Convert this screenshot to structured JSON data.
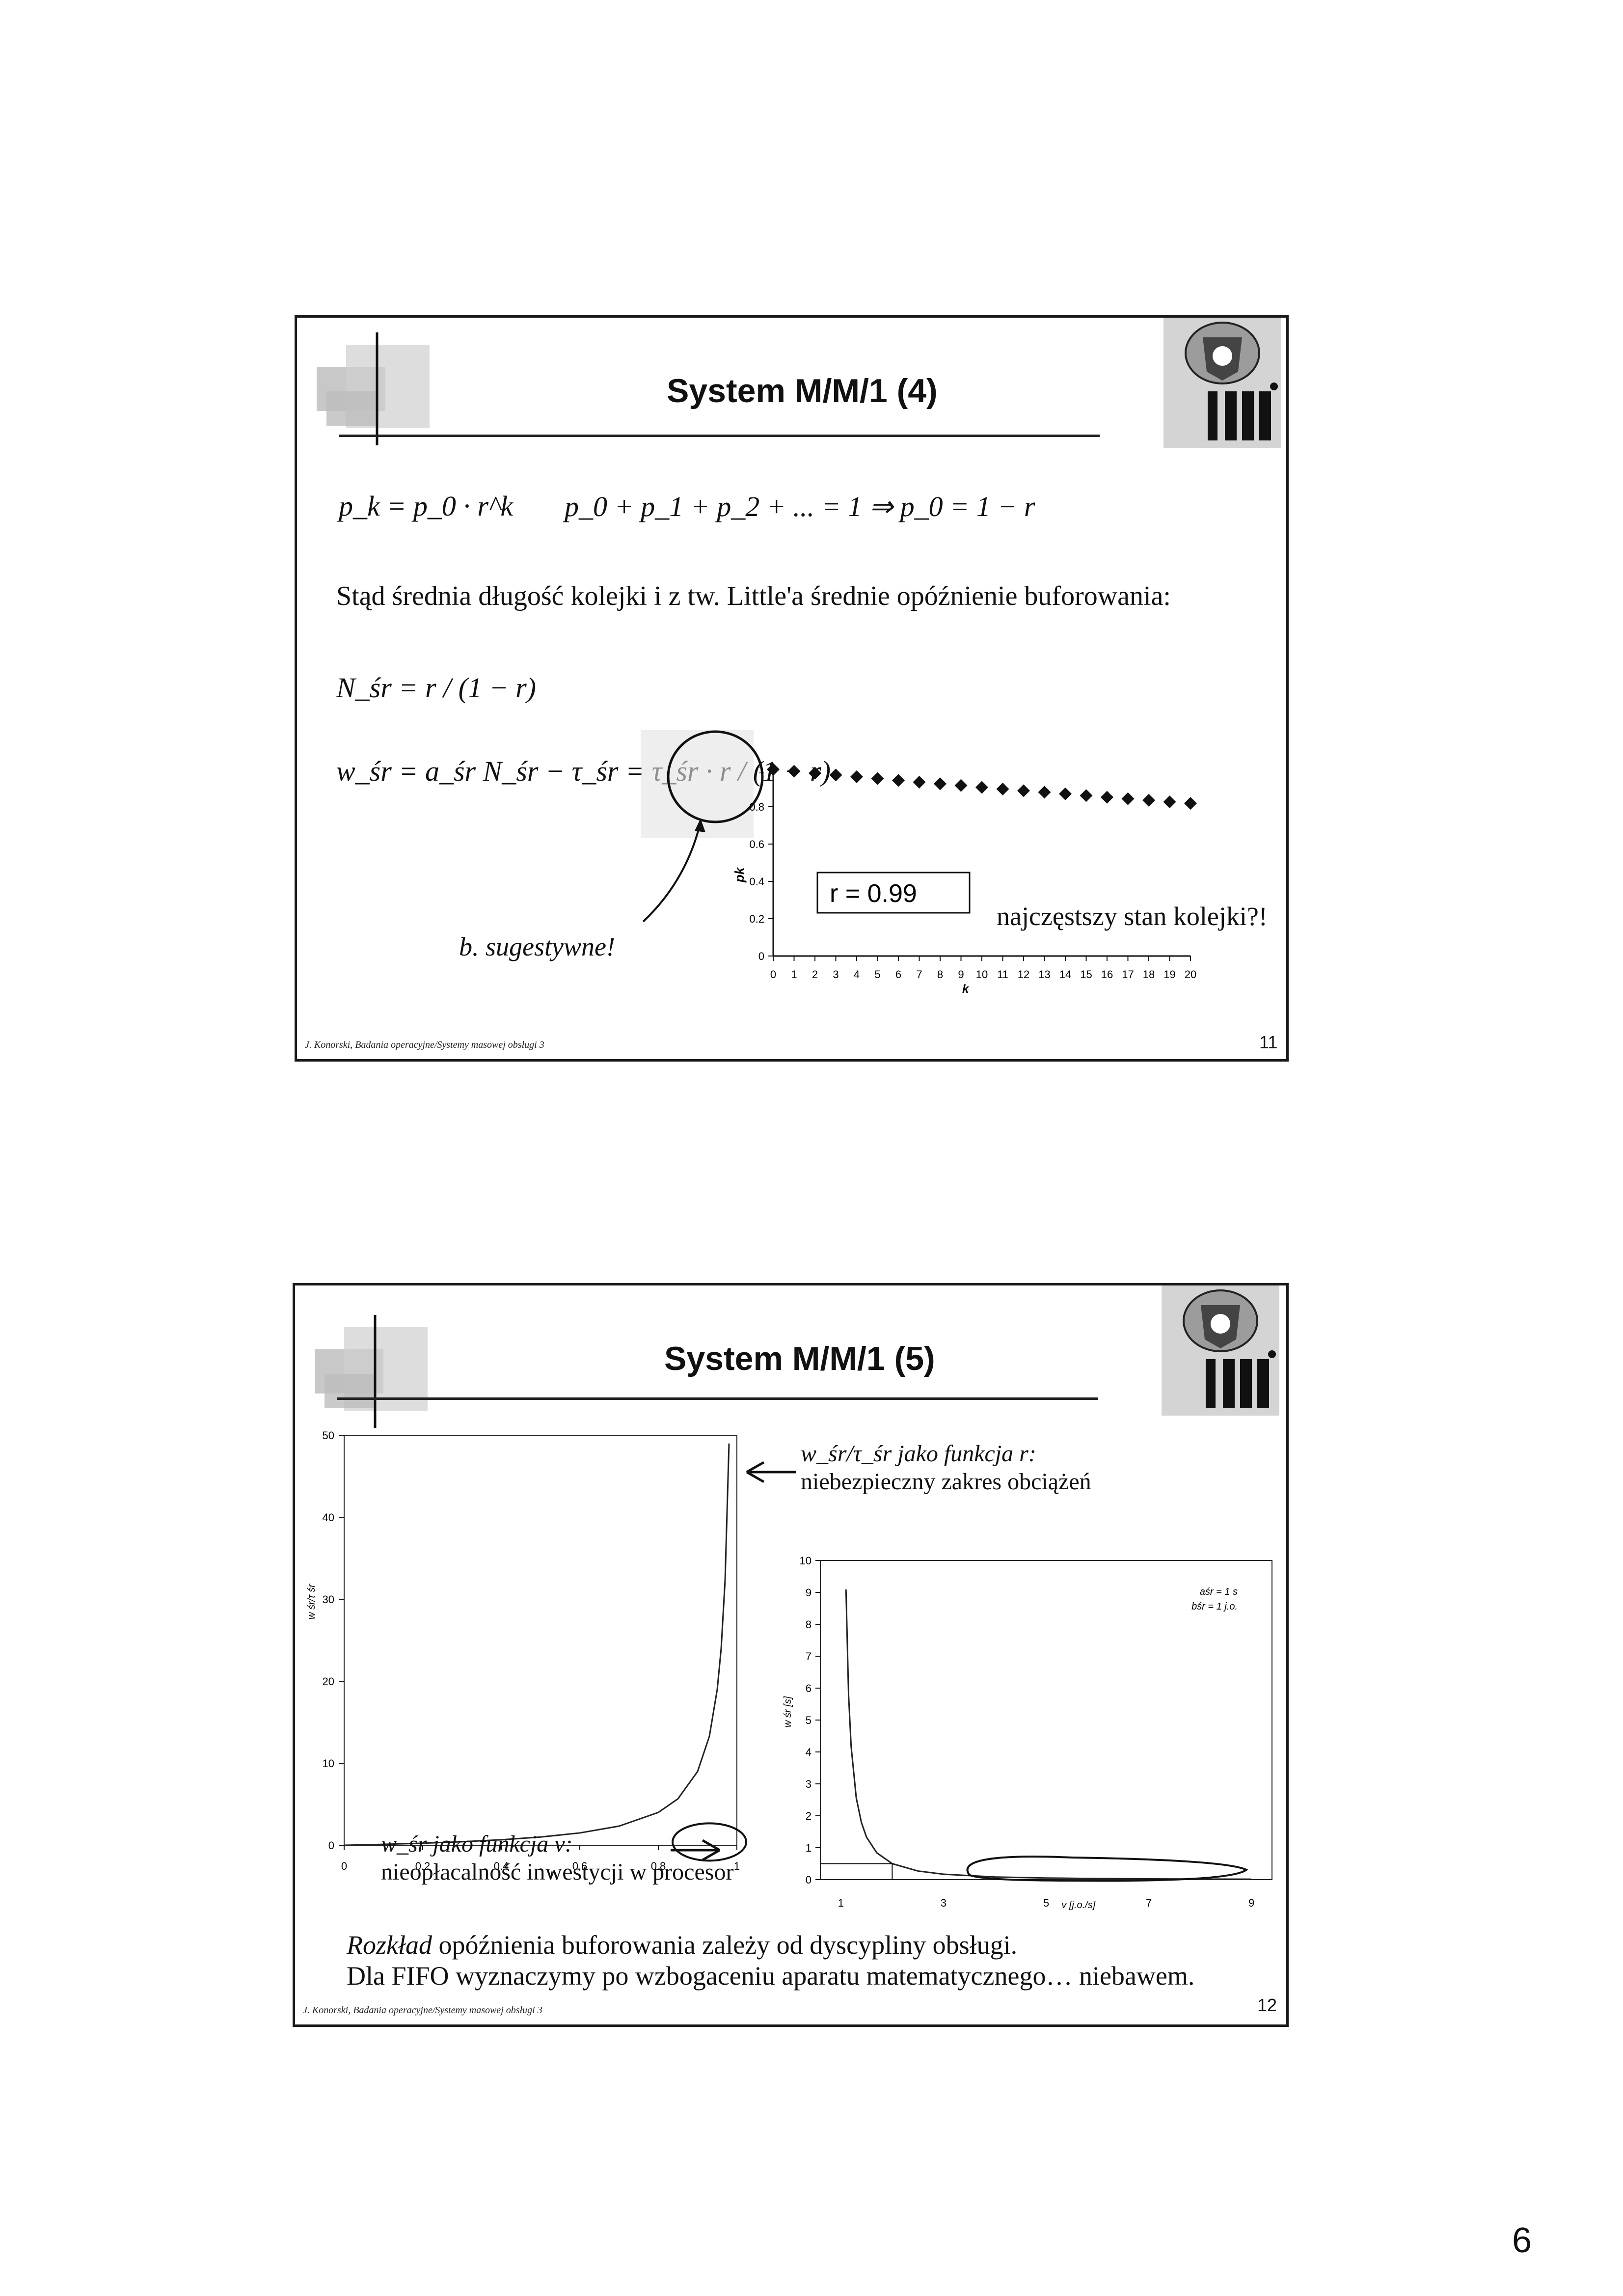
{
  "sheet_page_number": "6",
  "slide1": {
    "title": "System M/M/1 (4)",
    "formula_pk": "p_k = p_0 · r^k",
    "formula_sum": "p_0 + p_1 + p_2 + ... = 1 ⇒ p_0 = 1 − r",
    "intro_text": "Stąd średnia długość kolejki i z tw. Little'a średnie opóźnienie buforowania:",
    "formula_nsr": "N_śr = r / (1 − r)",
    "formula_wsr": "w_śr = a_śr N_śr − τ_śr = τ_śr · r / (1 − r)",
    "annotation": "b. sugestywne!",
    "chart_note": "najczęstszy stan kolejki?!",
    "footer": "J. Konorski, Badania operacyjne/Systemy masowej obsługi 3",
    "page": "11"
  },
  "slide2": {
    "title": "System M/M/1 (5)",
    "note_r_line1": "w_śr/τ_śr jako funkcja r:",
    "note_r_line2": "niebezpieczny zakres obciążeń",
    "note_v_line1": "w_śr jako funkcja v:",
    "note_v_line2": "nieopłacalność inwestycji w procesor",
    "bottom_line1_italic": "Rozkład",
    "bottom_line1_rest": " opóźnienia buforowania zależy od dyscypliny obsługi.",
    "bottom_line2": "Dla FIFO wyznaczymy po wzbogaceniu aparatu matematycznego… niebawem.",
    "footer": "J. Konorski, Badania operacyjne/Systemy masowej obsługi 3",
    "page": "12"
  },
  "chart_data": [
    {
      "type": "scatter",
      "ylabel": "pk",
      "xlabel": "k",
      "x": [
        0,
        1,
        2,
        3,
        4,
        5,
        6,
        7,
        8,
        9,
        10,
        11,
        12,
        13,
        14,
        15,
        16,
        17,
        18,
        19,
        20
      ],
      "y": [
        1,
        0.99,
        0.98,
        0.97,
        0.961,
        0.951,
        0.941,
        0.932,
        0.923,
        0.914,
        0.904,
        0.895,
        0.886,
        0.878,
        0.869,
        0.86,
        0.851,
        0.843,
        0.835,
        0.826,
        0.818
      ],
      "xlim": [
        0,
        20
      ],
      "ylim": [
        0,
        1
      ],
      "yticks": [
        "0",
        "0.2",
        "0.4",
        "0.6",
        "0.8",
        "1"
      ],
      "annotation": "r = 0.99",
      "marker": "diamond"
    },
    {
      "type": "line",
      "ylabel": "w śr/τ śr",
      "xlabel": "r",
      "xlim": [
        0,
        1
      ],
      "ylim": [
        0,
        50
      ],
      "xticks": [
        "0",
        "0.2",
        "0.4",
        "0.6",
        "0.8",
        "1"
      ],
      "yticks": [
        "0",
        "10",
        "20",
        "30",
        "40",
        "50"
      ],
      "x": [
        0,
        0.1,
        0.2,
        0.3,
        0.4,
        0.5,
        0.6,
        0.7,
        0.8,
        0.85,
        0.9,
        0.93,
        0.95,
        0.96,
        0.97,
        0.98
      ],
      "y": [
        0,
        0.111,
        0.25,
        0.429,
        0.667,
        1,
        1.5,
        2.333,
        4,
        5.667,
        9,
        13.29,
        19,
        24,
        32.33,
        49
      ]
    },
    {
      "type": "line",
      "ylabel": "w śr [s]",
      "xlabel": "v [j.o./s]",
      "xlim": [
        1,
        9
      ],
      "ylim": [
        0,
        10
      ],
      "xticks": [
        "1",
        "3",
        "5",
        "7",
        "9"
      ],
      "yticks": [
        "0",
        "1",
        "2",
        "3",
        "4",
        "5",
        "6",
        "7",
        "8",
        "9",
        "10"
      ],
      "legend_line1": "aśr = 1 s",
      "legend_line2": "bśr = 1 j.o.",
      "x": [
        1.1,
        1.15,
        1.2,
        1.3,
        1.4,
        1.5,
        1.7,
        2,
        2.5,
        3,
        4,
        5,
        6,
        7,
        8,
        9
      ],
      "y": [
        9.09,
        5.8,
        4.17,
        2.56,
        1.79,
        1.33,
        0.84,
        0.5,
        0.27,
        0.17,
        0.083,
        0.05,
        0.033,
        0.024,
        0.018,
        0.014
      ]
    }
  ]
}
